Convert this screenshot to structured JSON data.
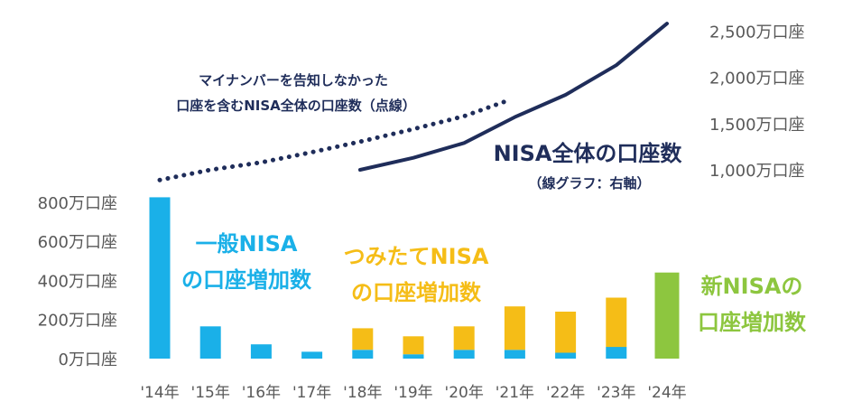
{
  "chart_data": {
    "type": "bar",
    "categories": [
      "'14年",
      "'15年",
      "'16年",
      "'17年",
      "'18年",
      "'19年",
      "'20年",
      "'21年",
      "'22年",
      "'23年",
      "'24年"
    ],
    "series": [
      {
        "name": "一般NISAの口座増加数",
        "values": [
          825,
          165,
          73,
          35,
          45,
          22,
          45,
          45,
          30,
          60,
          null
        ],
        "color": "#1ab0e8"
      },
      {
        "name": "つみたてNISAの口座増加数",
        "values": [
          null,
          null,
          null,
          null,
          110,
          92,
          120,
          222,
          210,
          252,
          null
        ],
        "color": "#f5bd17"
      },
      {
        "name": "新NISAの口座増加数",
        "values": [
          null,
          null,
          null,
          null,
          null,
          null,
          null,
          null,
          null,
          null,
          440
        ],
        "color": "#8dc63f"
      }
    ],
    "lines": [
      {
        "name": "NISA全体の口座数",
        "style": "solid",
        "color": "#1f2d5a",
        "x": [
          "'18年",
          "'19年",
          "'20年",
          "'21年",
          "'22年",
          "'23年",
          "'24年"
        ],
        "values": [
          1000,
          1130,
          1290,
          1570,
          1810,
          2130,
          2580
        ]
      },
      {
        "name": "マイナンバーを告知しなかった口座を含むNISA全体の口座数",
        "style": "dotted",
        "color": "#1f2d5a",
        "x": [
          "'14年",
          "'15年",
          "'16年",
          "'17年",
          "'18年",
          "'19年",
          "'20年",
          "'21年"
        ],
        "values": [
          890,
          1000,
          1080,
          1190,
          1310,
          1440,
          1580,
          1760
        ]
      }
    ],
    "left_axis": {
      "ylim": [
        0,
        1000
      ],
      "ticks": [
        "0万口座",
        "200万口座",
        "400万口座",
        "600万口座",
        "800万口座"
      ]
    },
    "right_axis": {
      "ylim": [
        0,
        2600
      ],
      "ticks": [
        "1,000万口座",
        "1,500万口座",
        "2,000万口座",
        "2,500万口座"
      ]
    },
    "grid": false,
    "annotations": {
      "dotted_note_line1": "マイナンバーを告知しなかった",
      "dotted_note_line2": "口座を含むNISA全体の口座数（点線）",
      "total_title": "NISA全体の口座数",
      "total_sub": "（線グラフ：右軸）",
      "general_line1": "一般NISA",
      "general_line2": "の口座増加数",
      "tsumitate_line1": "つみたてNISA",
      "tsumitate_line2": "の口座増加数",
      "new_line1": "新NISAの",
      "new_line2": "口座増加数"
    }
  }
}
